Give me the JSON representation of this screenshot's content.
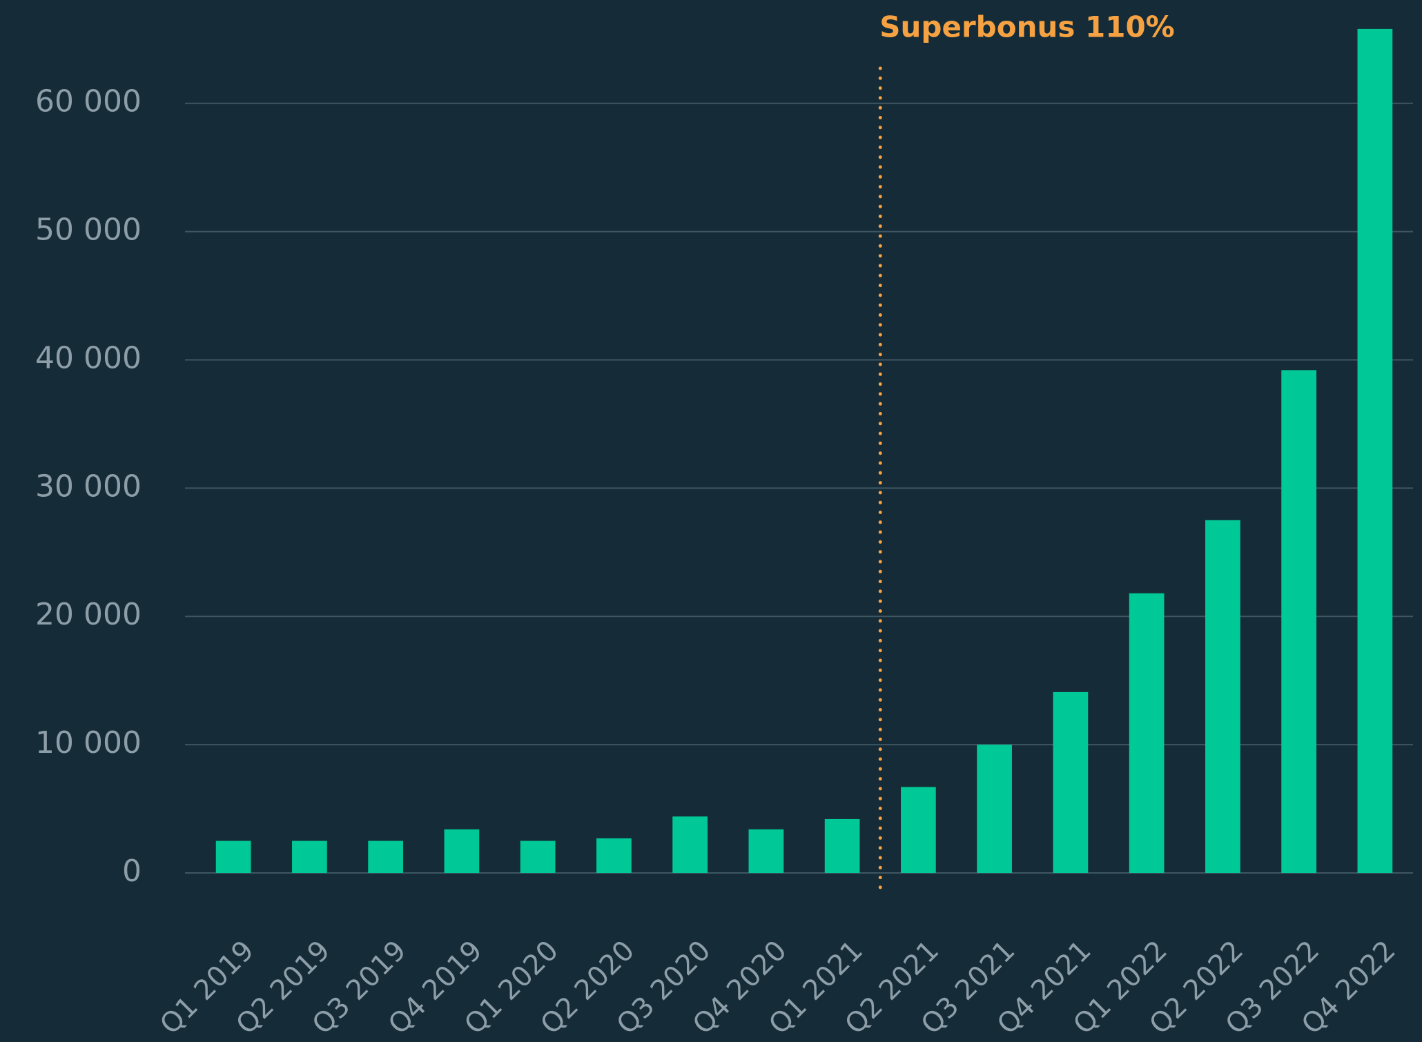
{
  "chart_data": {
    "type": "bar",
    "categories": [
      "Q1 2019",
      "Q2 2019",
      "Q3 2019",
      "Q4 2019",
      "Q1 2020",
      "Q2 2020",
      "Q3 2020",
      "Q4 2020",
      "Q1 2021",
      "Q2 2021",
      "Q3 2021",
      "Q4 2021",
      "Q1 2022",
      "Q2 2022",
      "Q3 2022",
      "Q4 2022"
    ],
    "values": [
      2500,
      2500,
      2500,
      3400,
      2500,
      2700,
      4400,
      3400,
      4200,
      6700,
      10000,
      14100,
      21800,
      27500,
      39200,
      65800
    ],
    "color": "#00c896",
    "ylim": [
      0,
      68000
    ],
    "yticks": [
      0,
      {
        "value": 10000,
        "label": "10 000"
      },
      {
        "value": 20000,
        "label": "20 000"
      },
      {
        "value": 30000,
        "label": "30 000"
      },
      {
        "value": 40000,
        "label": "40 000"
      },
      {
        "value": 50000,
        "label": "50 000"
      },
      {
        "value": 60000,
        "label": "60 000"
      }
    ],
    "grid": true,
    "annotation": {
      "text": "Superbonus 110%",
      "at": "Q2 2021",
      "color": "#f6a242"
    }
  }
}
